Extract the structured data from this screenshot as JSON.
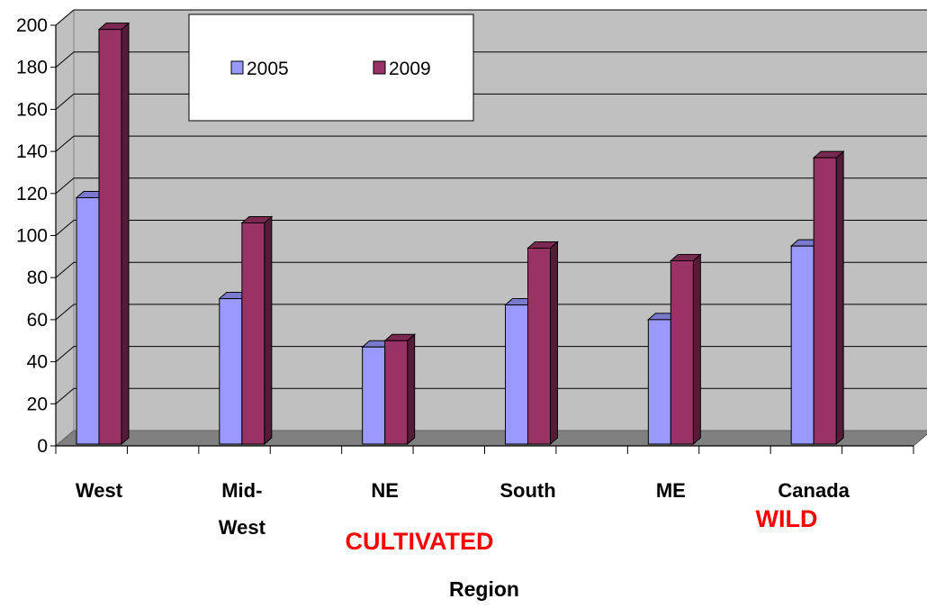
{
  "chart_data": {
    "type": "bar",
    "categories": [
      "West",
      "Mid-West",
      "NE",
      "South",
      "ME",
      "Canada"
    ],
    "category_lines": [
      [
        "West"
      ],
      [
        "Mid-",
        "West"
      ],
      [
        "NE"
      ],
      [
        "South"
      ],
      [
        "ME"
      ],
      [
        "Canada"
      ]
    ],
    "series": [
      {
        "name": "2005",
        "values": [
          118,
          70,
          47,
          67,
          60,
          95
        ],
        "color": "#9999ff"
      },
      {
        "name": "2009",
        "values": [
          198,
          106,
          50,
          94,
          88,
          137
        ],
        "color": "#993366"
      }
    ],
    "xlabel": "Region",
    "ylabel": "",
    "ylim": [
      0,
      200
    ],
    "yticks": [
      "0",
      "20",
      "40",
      "60",
      "80",
      "100",
      "120",
      "140",
      "160",
      "180",
      "200"
    ],
    "grid": true,
    "legend": "top-left",
    "annotations": [
      {
        "text": "CULTIVATED",
        "color": "#ff0000"
      },
      {
        "text": "WILD",
        "color": "#ff0000"
      }
    ],
    "colors": {
      "plot_wall": "#c0c0c0",
      "floor": "#808080",
      "gridline": "#000000"
    }
  }
}
